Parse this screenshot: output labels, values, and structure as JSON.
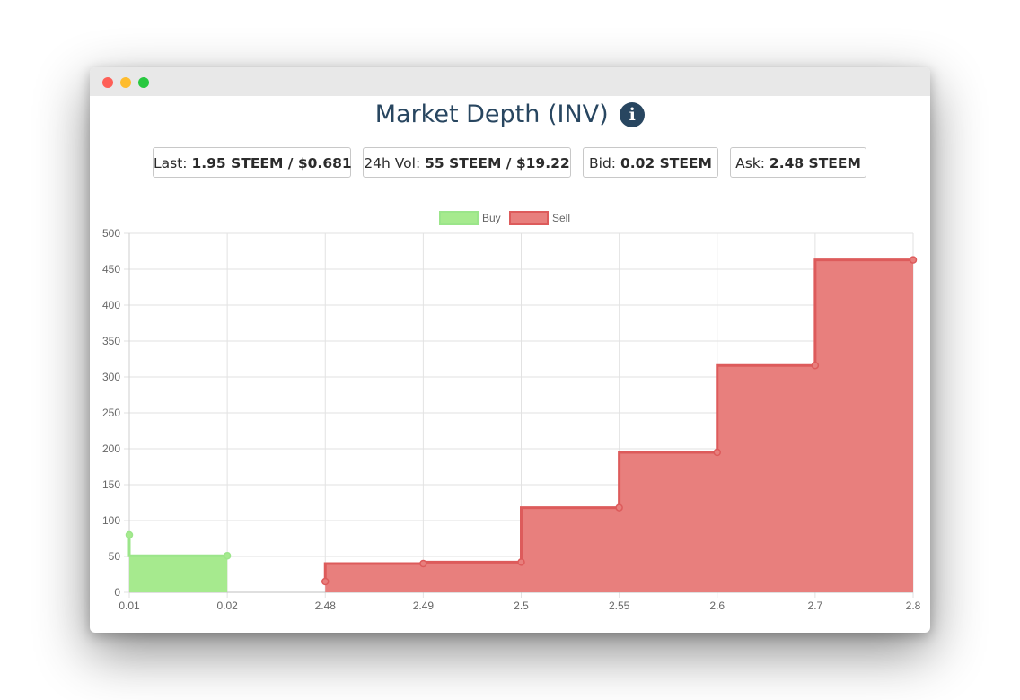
{
  "title": "Market Depth (INV)",
  "icons": {
    "info": "info-circle-icon",
    "info_glyph": "i"
  },
  "stats": {
    "last": {
      "label": "Last: ",
      "value": "1.95 STEEM / $0.681"
    },
    "vol": {
      "label": "24h Vol: ",
      "value": "55 STEEM / $19.22"
    },
    "bid": {
      "label": "Bid: ",
      "value": "0.02 STEEM"
    },
    "ask": {
      "label": "Ask: ",
      "value": "2.48 STEEM"
    }
  },
  "colors": {
    "buy_fill": "#a6ea8e",
    "buy_line": "#9be58a",
    "sell_fill": "#e87f7d",
    "sell_line": "#dd5b5b",
    "grid": "#e2e2e2",
    "title": "#284660"
  },
  "chart_data": {
    "type": "area",
    "stepped": true,
    "categories": [
      "0.01",
      "0.02",
      "2.48",
      "2.49",
      "2.5",
      "2.55",
      "2.6",
      "2.7",
      "2.8"
    ],
    "ylim": [
      0,
      500
    ],
    "yticks": [
      0,
      50,
      100,
      150,
      200,
      250,
      300,
      350,
      400,
      450,
      500
    ],
    "grid": true,
    "legend": "top-center",
    "series": [
      {
        "name": "Buy",
        "values": [
          80,
          51,
          null,
          null,
          null,
          null,
          null,
          null,
          null
        ]
      },
      {
        "name": "Sell",
        "values": [
          null,
          null,
          15,
          40,
          42,
          118,
          195,
          316,
          463
        ]
      }
    ]
  }
}
